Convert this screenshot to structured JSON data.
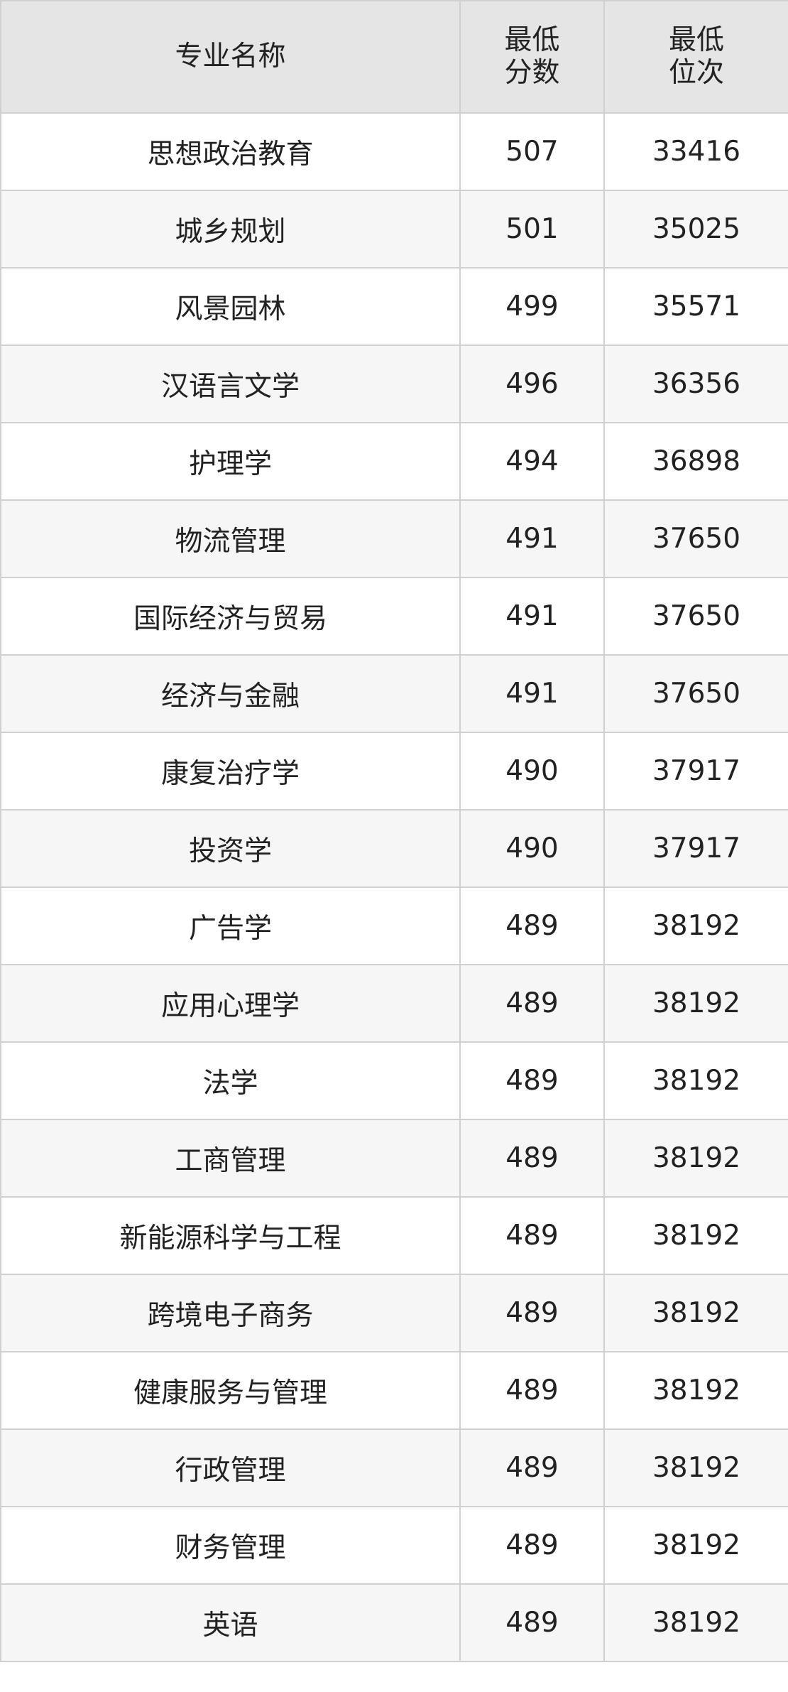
{
  "table": {
    "header": [
      "专业名称",
      [
        "最低",
        "分数"
      ],
      [
        "最低",
        "位次"
      ]
    ],
    "rows": [
      [
        "思想政治教育",
        507,
        33416
      ],
      [
        "城乡规划",
        501,
        35025
      ],
      [
        "风景园林",
        499,
        35571
      ],
      [
        "汉语言文学",
        496,
        36356
      ],
      [
        "护理学",
        494,
        36898
      ],
      [
        "物流管理",
        491,
        37650
      ],
      [
        "国际经济与贸易",
        491,
        37650
      ],
      [
        "经济与金融",
        491,
        37650
      ],
      [
        "康复治疗学",
        490,
        37917
      ],
      [
        "投资学",
        490,
        37917
      ],
      [
        "广告学",
        489,
        38192
      ],
      [
        "应用心理学",
        489,
        38192
      ],
      [
        "法学",
        489,
        38192
      ],
      [
        "工商管理",
        489,
        38192
      ],
      [
        "新能源科学与工程",
        489,
        38192
      ],
      [
        "跨境电子商务",
        489,
        38192
      ],
      [
        "健康服务与管理",
        489,
        38192
      ],
      [
        "行政管理",
        489,
        38192
      ],
      [
        "财务管理",
        489,
        38192
      ],
      [
        "英语",
        489,
        38192
      ]
    ]
  }
}
